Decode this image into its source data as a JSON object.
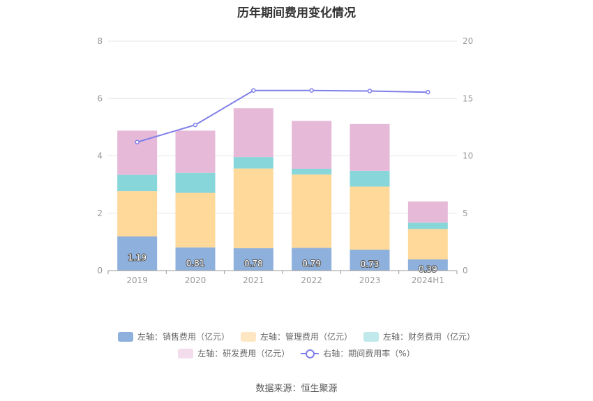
{
  "chart_data": {
    "type": "bar",
    "title": "历年期间费用变化情况",
    "categories": [
      "2019",
      "2020",
      "2021",
      "2022",
      "2023",
      "2024H1"
    ],
    "y_left": {
      "min": 0,
      "max": 8,
      "ticks": [
        "0",
        "2",
        "4",
        "6",
        "8"
      ]
    },
    "y_right": {
      "min": 0,
      "max": 20,
      "ticks": [
        "0",
        "5",
        "10",
        "15",
        "20"
      ]
    },
    "grid": true,
    "legend_position": "bottom",
    "series": [
      {
        "name": "左轴：销售费用（亿元）",
        "axis": "left",
        "stack": "expense",
        "color": "#8eb0dc",
        "values": [
          1.19,
          0.81,
          0.78,
          0.79,
          0.73,
          0.39
        ],
        "labels": [
          "1.19",
          "0.81",
          "0.78",
          "0.79",
          "0.73",
          "0.39"
        ]
      },
      {
        "name": "左轴：管理费用（亿元）",
        "axis": "left",
        "stack": "expense",
        "color": "#ffd99a",
        "values": [
          1.58,
          1.9,
          2.78,
          2.56,
          2.2,
          1.06
        ]
      },
      {
        "name": "左轴：财务费用（亿元）",
        "axis": "left",
        "stack": "expense",
        "color": "#86d6da",
        "values": [
          0.57,
          0.7,
          0.4,
          0.2,
          0.55,
          0.22
        ]
      },
      {
        "name": "左轴：研发费用（亿元）",
        "axis": "left",
        "stack": "expense",
        "color": "#e6b9d8",
        "values": [
          1.54,
          1.47,
          1.7,
          1.67,
          1.63,
          0.74
        ]
      },
      {
        "name": "右轴：期间费用率（%）",
        "axis": "right",
        "type": "line",
        "color": "#7f7fe8",
        "values": [
          11.2,
          12.7,
          15.7,
          15.7,
          15.65,
          15.55
        ]
      }
    ],
    "legend_swatch_colors": [
      "#8eb0dc",
      "#ffe6c2",
      "#bfe9eb",
      "#f3dcec"
    ]
  },
  "source": "数据来源：恒生聚源"
}
